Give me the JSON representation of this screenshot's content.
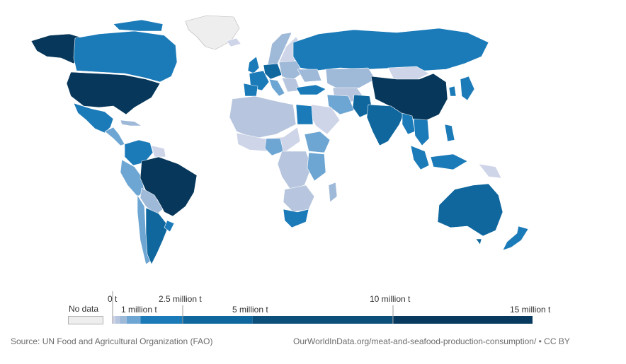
{
  "map": {
    "background": "#ffffff",
    "colors": {
      "no_data": "#eeeeee",
      "lightest": "#cfd5e8",
      "light": "#a9c0db",
      "mid_light": "#6ea6d3",
      "mid": "#1b7ab8",
      "dark": "#0c5c8e",
      "darkest": "#07375a"
    }
  },
  "legend": {
    "no_data_label": "No data",
    "ticks_top": [
      "0 t",
      "2.5 million t",
      "10 million t"
    ],
    "ticks_bottom": [
      "1 million t",
      "5 million t",
      "15 million t"
    ],
    "bins": [
      {
        "from": 0,
        "to": 100000,
        "color": "#cfd5e8"
      },
      {
        "from": 100000,
        "to": 250000,
        "color": "#b7c6de"
      },
      {
        "from": 250000,
        "to": 500000,
        "color": "#9fb9d8"
      },
      {
        "from": 500000,
        "to": 1000000,
        "color": "#6ea6d3"
      },
      {
        "from": 1000000,
        "to": 2500000,
        "color": "#1b7ab8"
      },
      {
        "from": 2500000,
        "to": 5000000,
        "color": "#0f679e"
      },
      {
        "from": 5000000,
        "to": 10000000,
        "color": "#0b4f7a"
      },
      {
        "from": 10000000,
        "to": 15000000,
        "color": "#073a5e"
      }
    ]
  },
  "footer": {
    "source": "Source: UN Food and Agricultural Organization (FAO)",
    "url": "OurWorldInData.org/meat-and-seafood-production-consumption/ • CC BY"
  }
}
